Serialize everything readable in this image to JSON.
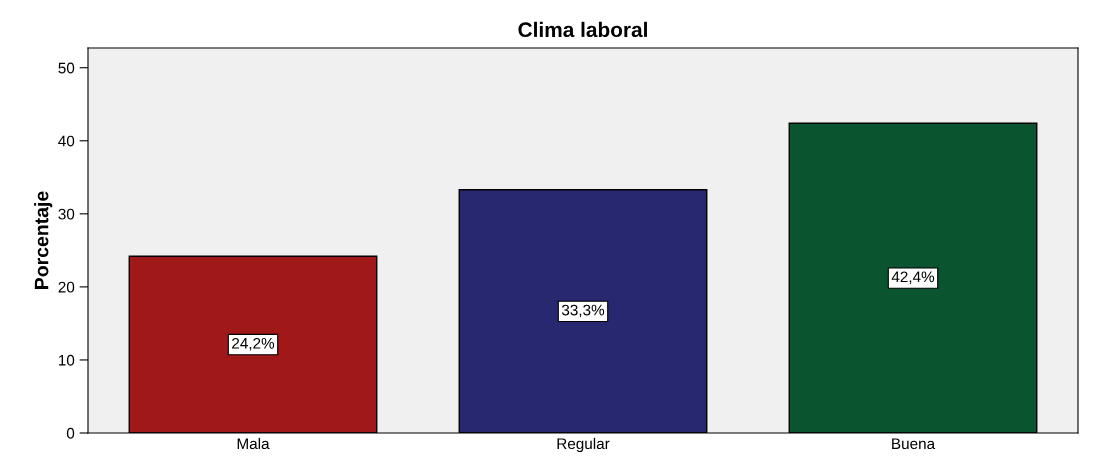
{
  "chart_data": {
    "type": "bar",
    "title": "Clima laboral",
    "ylabel": "Porcentaje",
    "categories": [
      "Mala",
      "Regular",
      "Buena"
    ],
    "values": [
      24.2,
      33.3,
      42.4
    ],
    "colors": [
      "#a01818",
      "#282870",
      "#0a5530"
    ],
    "value_labels": [
      "24,2%",
      "33,3%",
      "42,4%"
    ],
    "ylim": [
      0,
      52.7
    ],
    "yticks": [
      0,
      10,
      20,
      30,
      40,
      50
    ],
    "grid": false
  }
}
